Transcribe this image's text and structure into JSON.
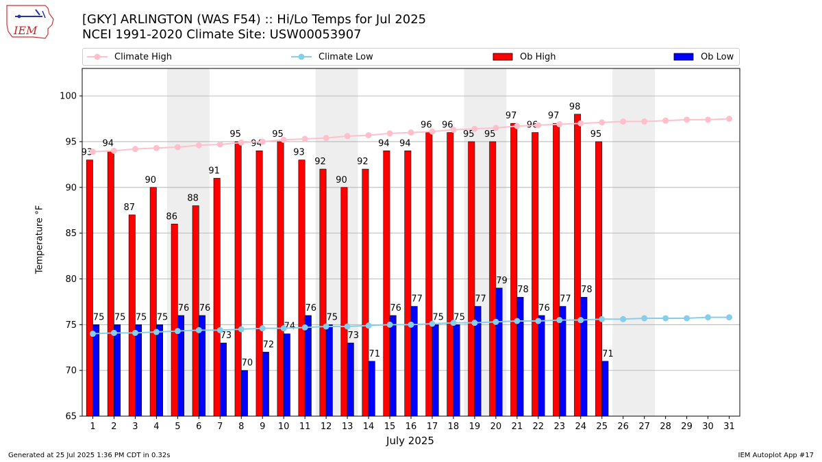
{
  "header": {
    "title": "[GKY] ARLINGTON (WAS F54) :: Hi/Lo Temps for Jul 2025",
    "subtitle": "NCEI 1991-2020 Climate Site: USW00053907",
    "logo_text": "IEM"
  },
  "legend": {
    "climate_high": "Climate High",
    "climate_low": "Climate Low",
    "ob_high": "Ob High",
    "ob_low": "Ob Low"
  },
  "footer": {
    "left": "Generated at 25 Jul 2025 1:36 PM CDT in 0.32s",
    "right": "IEM Autoplot App #17"
  },
  "colors": {
    "climate_high": "#ffc0cb",
    "climate_low": "#87ceeb",
    "ob_high": "#ff0000",
    "ob_low": "#0000ff",
    "weekend_shade": "#eeeeee",
    "grid": "#aaaaaa"
  },
  "chart_data": {
    "type": "bar",
    "xlabel": "July 2025",
    "ylabel": "Temperature °F",
    "ylim": [
      65,
      103
    ],
    "yticks": [
      65,
      70,
      75,
      80,
      85,
      90,
      95,
      100
    ],
    "grid": "horizontal",
    "legend_position": "top",
    "categories": [
      "1",
      "2",
      "3",
      "4",
      "5",
      "6",
      "7",
      "8",
      "9",
      "10",
      "11",
      "12",
      "13",
      "14",
      "15",
      "16",
      "17",
      "18",
      "19",
      "20",
      "21",
      "22",
      "23",
      "24",
      "25",
      "26",
      "27",
      "28",
      "29",
      "30",
      "31"
    ],
    "shaded_days": [
      [
        5,
        6
      ],
      [
        12,
        13
      ],
      [
        19,
        20
      ],
      [
        26,
        27
      ]
    ],
    "series": [
      {
        "name": "Ob High",
        "kind": "bar",
        "values": [
          93,
          94,
          87,
          90,
          86,
          88,
          91,
          95,
          94,
          95,
          93,
          92,
          90,
          92,
          94,
          94,
          96,
          96,
          95,
          95,
          97,
          96,
          97,
          98,
          95,
          null,
          null,
          null,
          null,
          null,
          null
        ]
      },
      {
        "name": "Ob Low",
        "kind": "bar",
        "values": [
          75,
          75,
          75,
          75,
          76,
          76,
          73,
          70,
          72,
          74,
          76,
          75,
          73,
          71,
          76,
          77,
          75,
          75,
          77,
          79,
          78,
          76,
          77,
          78,
          71,
          null,
          null,
          null,
          null,
          null,
          null
        ]
      },
      {
        "name": "Climate High",
        "kind": "line",
        "values": [
          93.9,
          94.0,
          94.2,
          94.3,
          94.4,
          94.6,
          94.7,
          94.9,
          95.0,
          95.2,
          95.3,
          95.4,
          95.6,
          95.7,
          95.9,
          96.0,
          96.1,
          96.3,
          96.4,
          96.5,
          96.7,
          96.8,
          96.9,
          97.0,
          97.1,
          97.2,
          97.2,
          97.3,
          97.4,
          97.4,
          97.5
        ]
      },
      {
        "name": "Climate Low",
        "kind": "line",
        "values": [
          74.0,
          74.1,
          74.1,
          74.2,
          74.3,
          74.4,
          74.4,
          74.5,
          74.6,
          74.6,
          74.7,
          74.8,
          74.8,
          74.9,
          75.0,
          75.0,
          75.1,
          75.2,
          75.2,
          75.3,
          75.4,
          75.4,
          75.5,
          75.5,
          75.6,
          75.6,
          75.7,
          75.7,
          75.7,
          75.8,
          75.8
        ]
      }
    ]
  }
}
